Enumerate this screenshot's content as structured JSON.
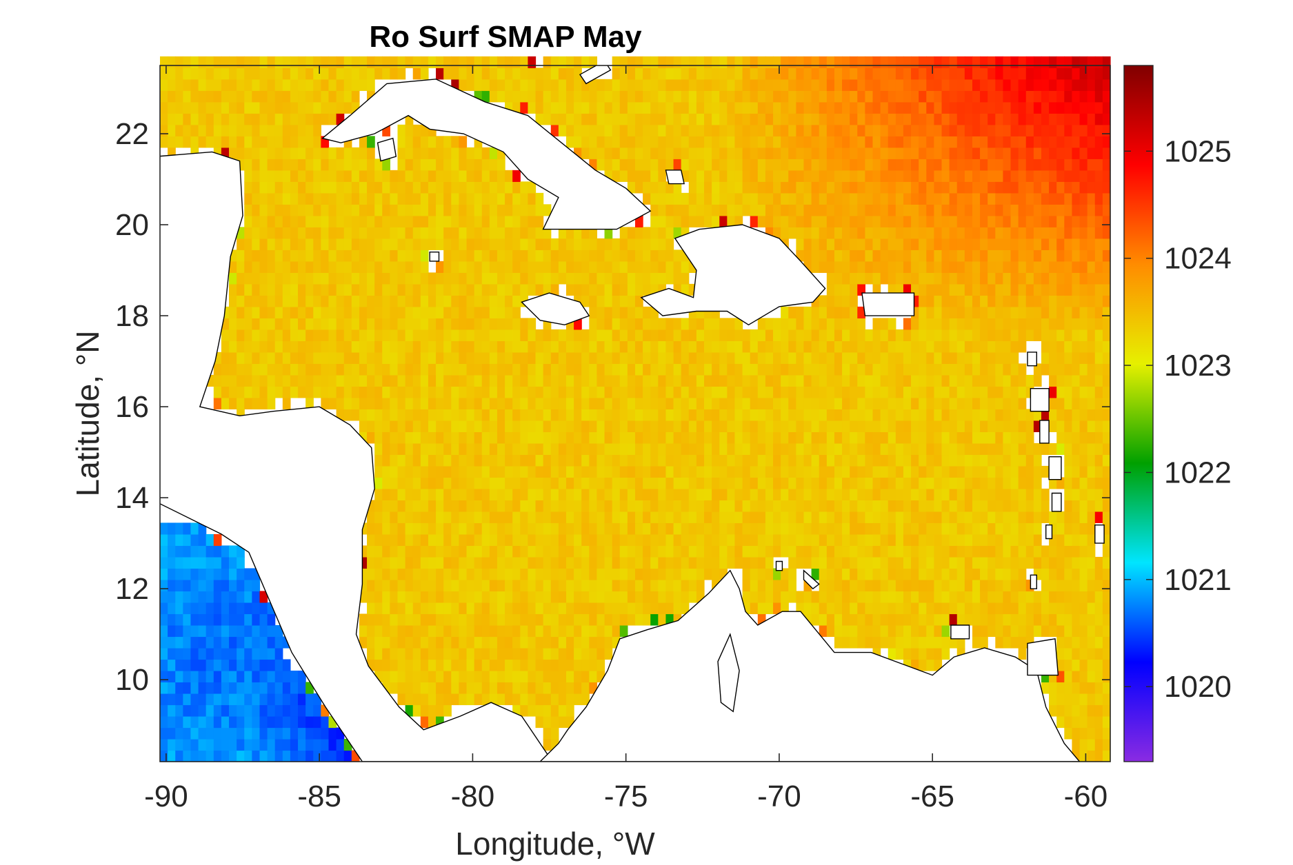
{
  "figure": {
    "title": "Ro Surf SMAP May",
    "xlabel": "Longitude, °W",
    "ylabel": "Latitude, °N"
  },
  "chart_data": {
    "type": "heatmap",
    "title": "Ro Surf SMAP May",
    "xlabel": "Longitude, °W",
    "ylabel": "Latitude, °N",
    "xlim": [
      -90.2,
      -59.2
    ],
    "ylim": [
      8.2,
      23.5
    ],
    "x_ticks": [
      -90,
      -85,
      -80,
      -75,
      -70,
      -65,
      -60
    ],
    "x_tick_labels": [
      "-90",
      "-85",
      "-80",
      "-75",
      "-70",
      "-65",
      "-60"
    ],
    "y_ticks": [
      10,
      12,
      14,
      16,
      18,
      20,
      22
    ],
    "y_tick_labels": [
      "10",
      "12",
      "14",
      "16",
      "18",
      "20",
      "22"
    ],
    "colorbar": {
      "range": [
        1019.3,
        1025.8
      ],
      "ticks": [
        1020,
        1021,
        1022,
        1023,
        1024,
        1025
      ],
      "tick_labels": [
        "1020",
        "1021",
        "1022",
        "1023",
        "1024",
        "1025"
      ],
      "colormap": [
        "#8a2be2",
        "#0000ff",
        "#00e5ff",
        "#00a000",
        "#e6f000",
        "#ff8c00",
        "#ff0000",
        "#800000"
      ]
    },
    "value_field": {
      "caribbean_interior": 1023.4,
      "atlantic_northeast": 1024.6,
      "atlantic_far_northeast": 1025.0,
      "pacific_southwest_core": 1021.0,
      "pacific_southwest_edge": 1020.3,
      "coastal_edge_high": 1025.5
    },
    "grid": false,
    "land_color": "#ffffff",
    "coastline_color": "#000000"
  }
}
